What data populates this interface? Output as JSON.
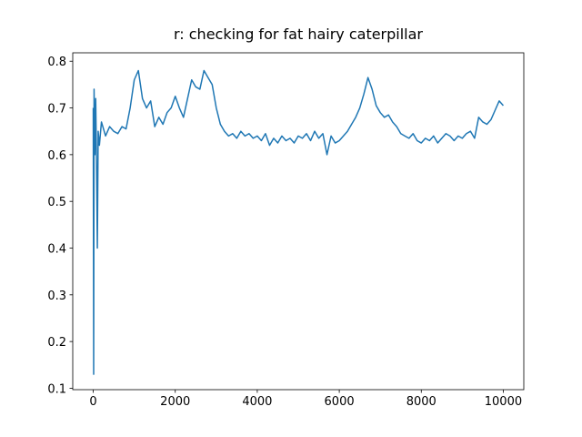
{
  "chart_data": {
    "type": "line",
    "title": "r: checking for fat hairy caterpillar",
    "x": [
      0,
      10,
      20,
      40,
      60,
      80,
      100,
      120,
      150,
      200,
      300,
      400,
      500,
      600,
      700,
      800,
      900,
      1000,
      1100,
      1200,
      1300,
      1400,
      1500,
      1600,
      1700,
      1800,
      1900,
      2000,
      2100,
      2200,
      2300,
      2400,
      2500,
      2600,
      2700,
      2800,
      2900,
      3000,
      3100,
      3200,
      3300,
      3400,
      3500,
      3600,
      3700,
      3800,
      3900,
      4000,
      4100,
      4200,
      4300,
      4400,
      4500,
      4600,
      4700,
      4800,
      4900,
      5000,
      5100,
      5200,
      5300,
      5400,
      5500,
      5600,
      5700,
      5800,
      5900,
      6000,
      6100,
      6200,
      6300,
      6400,
      6500,
      6600,
      6700,
      6800,
      6900,
      7000,
      7100,
      7200,
      7300,
      7400,
      7500,
      7600,
      7700,
      7800,
      7900,
      8000,
      8100,
      8200,
      8300,
      8400,
      8500,
      8600,
      8700,
      8800,
      8900,
      9000,
      9100,
      9200,
      9300,
      9400,
      9500,
      9600,
      9700,
      9800,
      9900,
      10000
    ],
    "series": [
      {
        "color": "#1f77b4",
        "values": [
          0.7,
          0.13,
          0.74,
          0.6,
          0.72,
          0.58,
          0.4,
          0.65,
          0.62,
          0.67,
          0.64,
          0.66,
          0.65,
          0.645,
          0.66,
          0.655,
          0.7,
          0.76,
          0.78,
          0.72,
          0.7,
          0.715,
          0.66,
          0.68,
          0.665,
          0.69,
          0.7,
          0.725,
          0.7,
          0.68,
          0.72,
          0.76,
          0.745,
          0.74,
          0.78,
          0.765,
          0.75,
          0.7,
          0.665,
          0.65,
          0.64,
          0.645,
          0.635,
          0.65,
          0.64,
          0.645,
          0.635,
          0.64,
          0.63,
          0.645,
          0.62,
          0.635,
          0.625,
          0.64,
          0.63,
          0.635,
          0.625,
          0.64,
          0.635,
          0.645,
          0.63,
          0.65,
          0.635,
          0.645,
          0.6,
          0.64,
          0.625,
          0.63,
          0.64,
          0.65,
          0.665,
          0.68,
          0.7,
          0.73,
          0.765,
          0.74,
          0.705,
          0.69,
          0.68,
          0.685,
          0.67,
          0.66,
          0.645,
          0.64,
          0.635,
          0.645,
          0.63,
          0.625,
          0.635,
          0.63,
          0.64,
          0.625,
          0.635,
          0.645,
          0.64,
          0.63,
          0.64,
          0.635,
          0.645,
          0.65,
          0.635,
          0.68,
          0.67,
          0.665,
          0.675,
          0.695,
          0.715,
          0.705
        ]
      }
    ],
    "xlim": [
      -500,
      10500
    ],
    "xticks": [
      0,
      2000,
      4000,
      6000,
      8000,
      10000
    ],
    "ylim": [
      0.097,
      0.818
    ],
    "yticks": [
      0.1,
      0.2,
      0.3,
      0.4,
      0.5,
      0.6,
      0.7,
      0.8
    ]
  }
}
